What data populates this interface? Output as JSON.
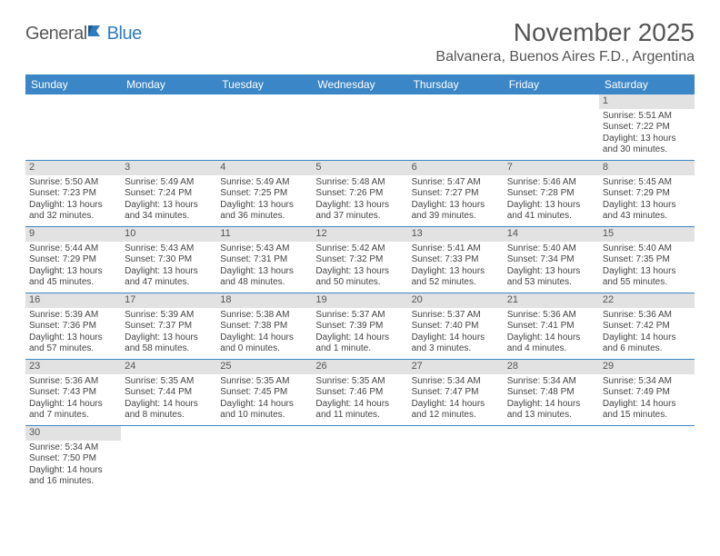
{
  "logo": {
    "text1": "General",
    "text2": "Blue"
  },
  "title": "November 2025",
  "location": "Balvanera, Buenos Aires F.D., Argentina",
  "colors": {
    "header_bg": "#3b86c6",
    "header_text": "#ffffff",
    "daynum_bg": "#e2e2e2",
    "body_text": "#444444",
    "logo_gray": "#5a5a5a",
    "logo_blue": "#2f7bbf",
    "row_border": "#3b86c6"
  },
  "dow": [
    "Sunday",
    "Monday",
    "Tuesday",
    "Wednesday",
    "Thursday",
    "Friday",
    "Saturday"
  ],
  "weeks": [
    [
      null,
      null,
      null,
      null,
      null,
      null,
      {
        "n": "1",
        "sr": "Sunrise: 5:51 AM",
        "ss": "Sunset: 7:22 PM",
        "dl": "Daylight: 13 hours and 30 minutes."
      }
    ],
    [
      {
        "n": "2",
        "sr": "Sunrise: 5:50 AM",
        "ss": "Sunset: 7:23 PM",
        "dl": "Daylight: 13 hours and 32 minutes."
      },
      {
        "n": "3",
        "sr": "Sunrise: 5:49 AM",
        "ss": "Sunset: 7:24 PM",
        "dl": "Daylight: 13 hours and 34 minutes."
      },
      {
        "n": "4",
        "sr": "Sunrise: 5:49 AM",
        "ss": "Sunset: 7:25 PM",
        "dl": "Daylight: 13 hours and 36 minutes."
      },
      {
        "n": "5",
        "sr": "Sunrise: 5:48 AM",
        "ss": "Sunset: 7:26 PM",
        "dl": "Daylight: 13 hours and 37 minutes."
      },
      {
        "n": "6",
        "sr": "Sunrise: 5:47 AM",
        "ss": "Sunset: 7:27 PM",
        "dl": "Daylight: 13 hours and 39 minutes."
      },
      {
        "n": "7",
        "sr": "Sunrise: 5:46 AM",
        "ss": "Sunset: 7:28 PM",
        "dl": "Daylight: 13 hours and 41 minutes."
      },
      {
        "n": "8",
        "sr": "Sunrise: 5:45 AM",
        "ss": "Sunset: 7:29 PM",
        "dl": "Daylight: 13 hours and 43 minutes."
      }
    ],
    [
      {
        "n": "9",
        "sr": "Sunrise: 5:44 AM",
        "ss": "Sunset: 7:29 PM",
        "dl": "Daylight: 13 hours and 45 minutes."
      },
      {
        "n": "10",
        "sr": "Sunrise: 5:43 AM",
        "ss": "Sunset: 7:30 PM",
        "dl": "Daylight: 13 hours and 47 minutes."
      },
      {
        "n": "11",
        "sr": "Sunrise: 5:43 AM",
        "ss": "Sunset: 7:31 PM",
        "dl": "Daylight: 13 hours and 48 minutes."
      },
      {
        "n": "12",
        "sr": "Sunrise: 5:42 AM",
        "ss": "Sunset: 7:32 PM",
        "dl": "Daylight: 13 hours and 50 minutes."
      },
      {
        "n": "13",
        "sr": "Sunrise: 5:41 AM",
        "ss": "Sunset: 7:33 PM",
        "dl": "Daylight: 13 hours and 52 minutes."
      },
      {
        "n": "14",
        "sr": "Sunrise: 5:40 AM",
        "ss": "Sunset: 7:34 PM",
        "dl": "Daylight: 13 hours and 53 minutes."
      },
      {
        "n": "15",
        "sr": "Sunrise: 5:40 AM",
        "ss": "Sunset: 7:35 PM",
        "dl": "Daylight: 13 hours and 55 minutes."
      }
    ],
    [
      {
        "n": "16",
        "sr": "Sunrise: 5:39 AM",
        "ss": "Sunset: 7:36 PM",
        "dl": "Daylight: 13 hours and 57 minutes."
      },
      {
        "n": "17",
        "sr": "Sunrise: 5:39 AM",
        "ss": "Sunset: 7:37 PM",
        "dl": "Daylight: 13 hours and 58 minutes."
      },
      {
        "n": "18",
        "sr": "Sunrise: 5:38 AM",
        "ss": "Sunset: 7:38 PM",
        "dl": "Daylight: 14 hours and 0 minutes."
      },
      {
        "n": "19",
        "sr": "Sunrise: 5:37 AM",
        "ss": "Sunset: 7:39 PM",
        "dl": "Daylight: 14 hours and 1 minute."
      },
      {
        "n": "20",
        "sr": "Sunrise: 5:37 AM",
        "ss": "Sunset: 7:40 PM",
        "dl": "Daylight: 14 hours and 3 minutes."
      },
      {
        "n": "21",
        "sr": "Sunrise: 5:36 AM",
        "ss": "Sunset: 7:41 PM",
        "dl": "Daylight: 14 hours and 4 minutes."
      },
      {
        "n": "22",
        "sr": "Sunrise: 5:36 AM",
        "ss": "Sunset: 7:42 PM",
        "dl": "Daylight: 14 hours and 6 minutes."
      }
    ],
    [
      {
        "n": "23",
        "sr": "Sunrise: 5:36 AM",
        "ss": "Sunset: 7:43 PM",
        "dl": "Daylight: 14 hours and 7 minutes."
      },
      {
        "n": "24",
        "sr": "Sunrise: 5:35 AM",
        "ss": "Sunset: 7:44 PM",
        "dl": "Daylight: 14 hours and 8 minutes."
      },
      {
        "n": "25",
        "sr": "Sunrise: 5:35 AM",
        "ss": "Sunset: 7:45 PM",
        "dl": "Daylight: 14 hours and 10 minutes."
      },
      {
        "n": "26",
        "sr": "Sunrise: 5:35 AM",
        "ss": "Sunset: 7:46 PM",
        "dl": "Daylight: 14 hours and 11 minutes."
      },
      {
        "n": "27",
        "sr": "Sunrise: 5:34 AM",
        "ss": "Sunset: 7:47 PM",
        "dl": "Daylight: 14 hours and 12 minutes."
      },
      {
        "n": "28",
        "sr": "Sunrise: 5:34 AM",
        "ss": "Sunset: 7:48 PM",
        "dl": "Daylight: 14 hours and 13 minutes."
      },
      {
        "n": "29",
        "sr": "Sunrise: 5:34 AM",
        "ss": "Sunset: 7:49 PM",
        "dl": "Daylight: 14 hours and 15 minutes."
      }
    ],
    [
      {
        "n": "30",
        "sr": "Sunrise: 5:34 AM",
        "ss": "Sunset: 7:50 PM",
        "dl": "Daylight: 14 hours and 16 minutes."
      },
      null,
      null,
      null,
      null,
      null,
      null
    ]
  ]
}
